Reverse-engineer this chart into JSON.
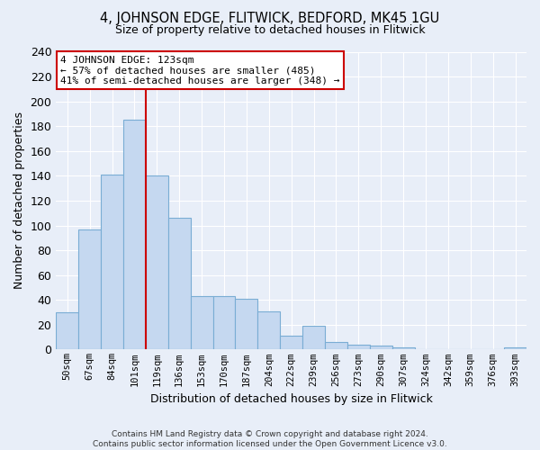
{
  "title": "4, JOHNSON EDGE, FLITWICK, BEDFORD, MK45 1GU",
  "subtitle": "Size of property relative to detached houses in Flitwick",
  "xlabel": "Distribution of detached houses by size in Flitwick",
  "ylabel": "Number of detached properties",
  "footer_line1": "Contains HM Land Registry data © Crown copyright and database right 2024.",
  "footer_line2": "Contains public sector information licensed under the Open Government Licence v3.0.",
  "categories": [
    "50sqm",
    "67sqm",
    "84sqm",
    "101sqm",
    "119sqm",
    "136sqm",
    "153sqm",
    "170sqm",
    "187sqm",
    "204sqm",
    "222sqm",
    "239sqm",
    "256sqm",
    "273sqm",
    "290sqm",
    "307sqm",
    "324sqm",
    "342sqm",
    "359sqm",
    "376sqm",
    "393sqm"
  ],
  "values": [
    30,
    97,
    141,
    185,
    140,
    106,
    43,
    43,
    41,
    31,
    11,
    19,
    6,
    4,
    3,
    2,
    0,
    0,
    0,
    0,
    2
  ],
  "bar_color": "#c5d8f0",
  "bar_edge_color": "#7aadd4",
  "background_color": "#e8eef8",
  "grid_color": "#ffffff",
  "red_line_x": 3.5,
  "annotation_line1": "4 JOHNSON EDGE: 123sqm",
  "annotation_line2": "← 57% of detached houses are smaller (485)",
  "annotation_line3": "41% of semi-detached houses are larger (348) →",
  "annotation_box_color": "#ffffff",
  "annotation_box_edge_color": "#cc0000",
  "ylim": [
    0,
    240
  ],
  "yticks": [
    0,
    20,
    40,
    60,
    80,
    100,
    120,
    140,
    160,
    180,
    200,
    220,
    240
  ]
}
